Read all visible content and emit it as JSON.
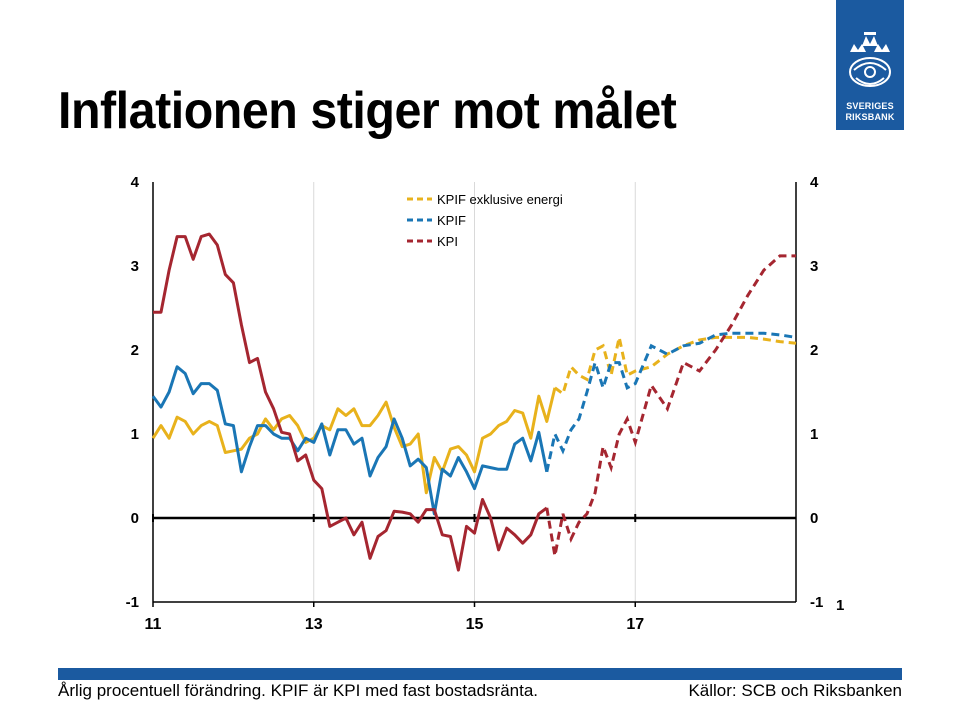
{
  "title": "Inflationen stiger mot målet",
  "logo": {
    "line1": "SVERIGES",
    "line2": "RIKSBANK"
  },
  "footer": {
    "note": "Årlig procentuell förändring. KPIF är KPI med fast bostadsränta.",
    "source": "Källor: SCB och Riksbanken"
  },
  "page_number": "1",
  "colors": {
    "brand": "#1b5aa0",
    "kpif_ex": "#e8b21c",
    "kpif": "#1a76b5",
    "kpi": "#a52630"
  },
  "chart_data": {
    "type": "line",
    "title": "",
    "xlabel": "",
    "ylabel": "",
    "x_range": [
      2011.0,
      2019.0
    ],
    "ylim": [
      -1,
      4
    ],
    "y_ticks": [
      4,
      3,
      2,
      1,
      0,
      -1
    ],
    "y_tick_labels": [
      "4",
      "3",
      "2",
      "1",
      "0",
      "-1"
    ],
    "x_ticks": [
      2011,
      2013,
      2015,
      2017
    ],
    "x_tick_labels": [
      "11",
      "13",
      "15",
      "17"
    ],
    "gridlines": "vertical",
    "legend": "top-center",
    "series": [
      {
        "name": "KPIF exklusive energi",
        "color": "#e8b21c",
        "x": [
          2011.0,
          2011.1,
          2011.2,
          2011.3,
          2011.4,
          2011.5,
          2011.6,
          2011.7,
          2011.8,
          2011.9,
          2012.0,
          2012.1,
          2012.2,
          2012.3,
          2012.4,
          2012.5,
          2012.6,
          2012.7,
          2012.8,
          2012.9,
          2013.0,
          2013.1,
          2013.2,
          2013.3,
          2013.4,
          2013.5,
          2013.6,
          2013.7,
          2013.8,
          2013.9,
          2014.0,
          2014.1,
          2014.2,
          2014.3,
          2014.4,
          2014.5,
          2014.6,
          2014.7,
          2014.8,
          2014.9,
          2015.0,
          2015.1,
          2015.2,
          2015.3,
          2015.4,
          2015.5,
          2015.6,
          2015.7,
          2015.8,
          2015.9,
          2016.0,
          2016.1,
          2016.2,
          2016.3,
          2016.4,
          2016.5,
          2016.6,
          2016.7,
          2016.8,
          2016.9,
          2017.0,
          2017.2,
          2017.4,
          2017.6,
          2017.8,
          2018.0,
          2018.2,
          2018.4,
          2018.6,
          2018.8,
          2019.0
        ],
        "y": [
          0.95,
          1.1,
          0.95,
          1.2,
          1.15,
          1.0,
          1.1,
          1.15,
          1.1,
          0.78,
          0.8,
          0.82,
          0.95,
          1.0,
          1.18,
          1.05,
          1.18,
          1.22,
          1.1,
          0.9,
          0.95,
          1.1,
          1.05,
          1.3,
          1.22,
          1.3,
          1.1,
          1.1,
          1.22,
          1.38,
          1.08,
          0.85,
          0.88,
          1.0,
          0.3,
          0.72,
          0.55,
          0.82,
          0.85,
          0.75,
          0.55,
          0.95,
          1.0,
          1.1,
          1.15,
          1.28,
          1.25,
          0.95,
          1.45,
          1.15,
          1.55,
          1.48,
          1.8,
          1.7,
          1.65,
          2.0,
          2.05,
          1.7,
          2.15,
          1.7,
          1.75,
          1.8,
          1.95,
          2.05,
          2.12,
          2.15,
          2.15,
          2.15,
          2.13,
          2.1,
          2.08
        ],
        "forecast_from": 2016.0
      },
      {
        "name": "KPIF",
        "color": "#1a76b5",
        "x": [
          2011.0,
          2011.1,
          2011.2,
          2011.3,
          2011.4,
          2011.5,
          2011.6,
          2011.7,
          2011.8,
          2011.9,
          2012.0,
          2012.1,
          2012.2,
          2012.3,
          2012.4,
          2012.5,
          2012.6,
          2012.7,
          2012.8,
          2012.9,
          2013.0,
          2013.1,
          2013.2,
          2013.3,
          2013.4,
          2013.5,
          2013.6,
          2013.7,
          2013.8,
          2013.9,
          2014.0,
          2014.1,
          2014.2,
          2014.3,
          2014.4,
          2014.5,
          2014.6,
          2014.7,
          2014.8,
          2014.9,
          2015.0,
          2015.1,
          2015.2,
          2015.3,
          2015.4,
          2015.5,
          2015.6,
          2015.7,
          2015.8,
          2015.9,
          2016.0,
          2016.1,
          2016.2,
          2016.3,
          2016.4,
          2016.5,
          2016.6,
          2016.7,
          2016.8,
          2016.9,
          2017.0,
          2017.2,
          2017.4,
          2017.6,
          2017.8,
          2018.0,
          2018.2,
          2018.4,
          2018.6,
          2018.8,
          2019.0
        ],
        "y": [
          1.45,
          1.32,
          1.5,
          1.8,
          1.72,
          1.48,
          1.6,
          1.6,
          1.52,
          1.12,
          1.1,
          0.55,
          0.85,
          1.1,
          1.1,
          1.0,
          0.95,
          0.95,
          0.8,
          0.95,
          0.9,
          1.12,
          0.75,
          1.05,
          1.05,
          0.88,
          0.95,
          0.5,
          0.72,
          0.85,
          1.18,
          0.95,
          0.62,
          0.7,
          0.6,
          0.05,
          0.58,
          0.5,
          0.72,
          0.55,
          0.35,
          0.62,
          0.6,
          0.58,
          0.58,
          0.88,
          0.95,
          0.68,
          1.02,
          0.55,
          1.0,
          0.8,
          1.05,
          1.18,
          1.5,
          1.85,
          1.55,
          1.85,
          1.85,
          1.55,
          1.6,
          2.05,
          1.95,
          2.05,
          2.08,
          2.18,
          2.2,
          2.2,
          2.2,
          2.18,
          2.15
        ],
        "forecast_from": 2015.9
      },
      {
        "name": "KPI",
        "color": "#a52630",
        "x": [
          2011.0,
          2011.1,
          2011.2,
          2011.3,
          2011.4,
          2011.5,
          2011.6,
          2011.7,
          2011.8,
          2011.9,
          2012.0,
          2012.1,
          2012.2,
          2012.3,
          2012.4,
          2012.5,
          2012.6,
          2012.7,
          2012.8,
          2012.9,
          2013.0,
          2013.1,
          2013.2,
          2013.3,
          2013.4,
          2013.5,
          2013.6,
          2013.7,
          2013.8,
          2013.9,
          2014.0,
          2014.1,
          2014.2,
          2014.3,
          2014.4,
          2014.5,
          2014.6,
          2014.7,
          2014.8,
          2014.9,
          2015.0,
          2015.1,
          2015.2,
          2015.3,
          2015.4,
          2015.5,
          2015.6,
          2015.7,
          2015.8,
          2015.9,
          2016.0,
          2016.1,
          2016.2,
          2016.3,
          2016.4,
          2016.5,
          2016.6,
          2016.7,
          2016.8,
          2016.9,
          2017.0,
          2017.2,
          2017.4,
          2017.6,
          2017.8,
          2018.0,
          2018.2,
          2018.4,
          2018.6,
          2018.8,
          2019.0
        ],
        "y": [
          2.45,
          2.45,
          2.95,
          3.35,
          3.35,
          3.08,
          3.35,
          3.38,
          3.25,
          2.9,
          2.8,
          2.3,
          1.85,
          1.9,
          1.5,
          1.3,
          1.02,
          1.0,
          0.68,
          0.75,
          0.45,
          0.35,
          -0.1,
          -0.05,
          0.0,
          -0.2,
          -0.05,
          -0.48,
          -0.22,
          -0.15,
          0.08,
          0.07,
          0.05,
          -0.05,
          0.1,
          0.1,
          -0.2,
          -0.22,
          -0.62,
          -0.1,
          -0.18,
          0.22,
          0.0,
          -0.38,
          -0.12,
          -0.2,
          -0.3,
          -0.2,
          0.05,
          0.12,
          -0.45,
          0.05,
          -0.25,
          -0.05,
          0.05,
          0.3,
          0.85,
          0.6,
          1.0,
          1.18,
          0.9,
          1.58,
          1.3,
          1.85,
          1.75,
          2.0,
          2.3,
          2.65,
          2.95,
          3.12,
          3.12
        ],
        "forecast_from": 2015.9
      }
    ]
  }
}
